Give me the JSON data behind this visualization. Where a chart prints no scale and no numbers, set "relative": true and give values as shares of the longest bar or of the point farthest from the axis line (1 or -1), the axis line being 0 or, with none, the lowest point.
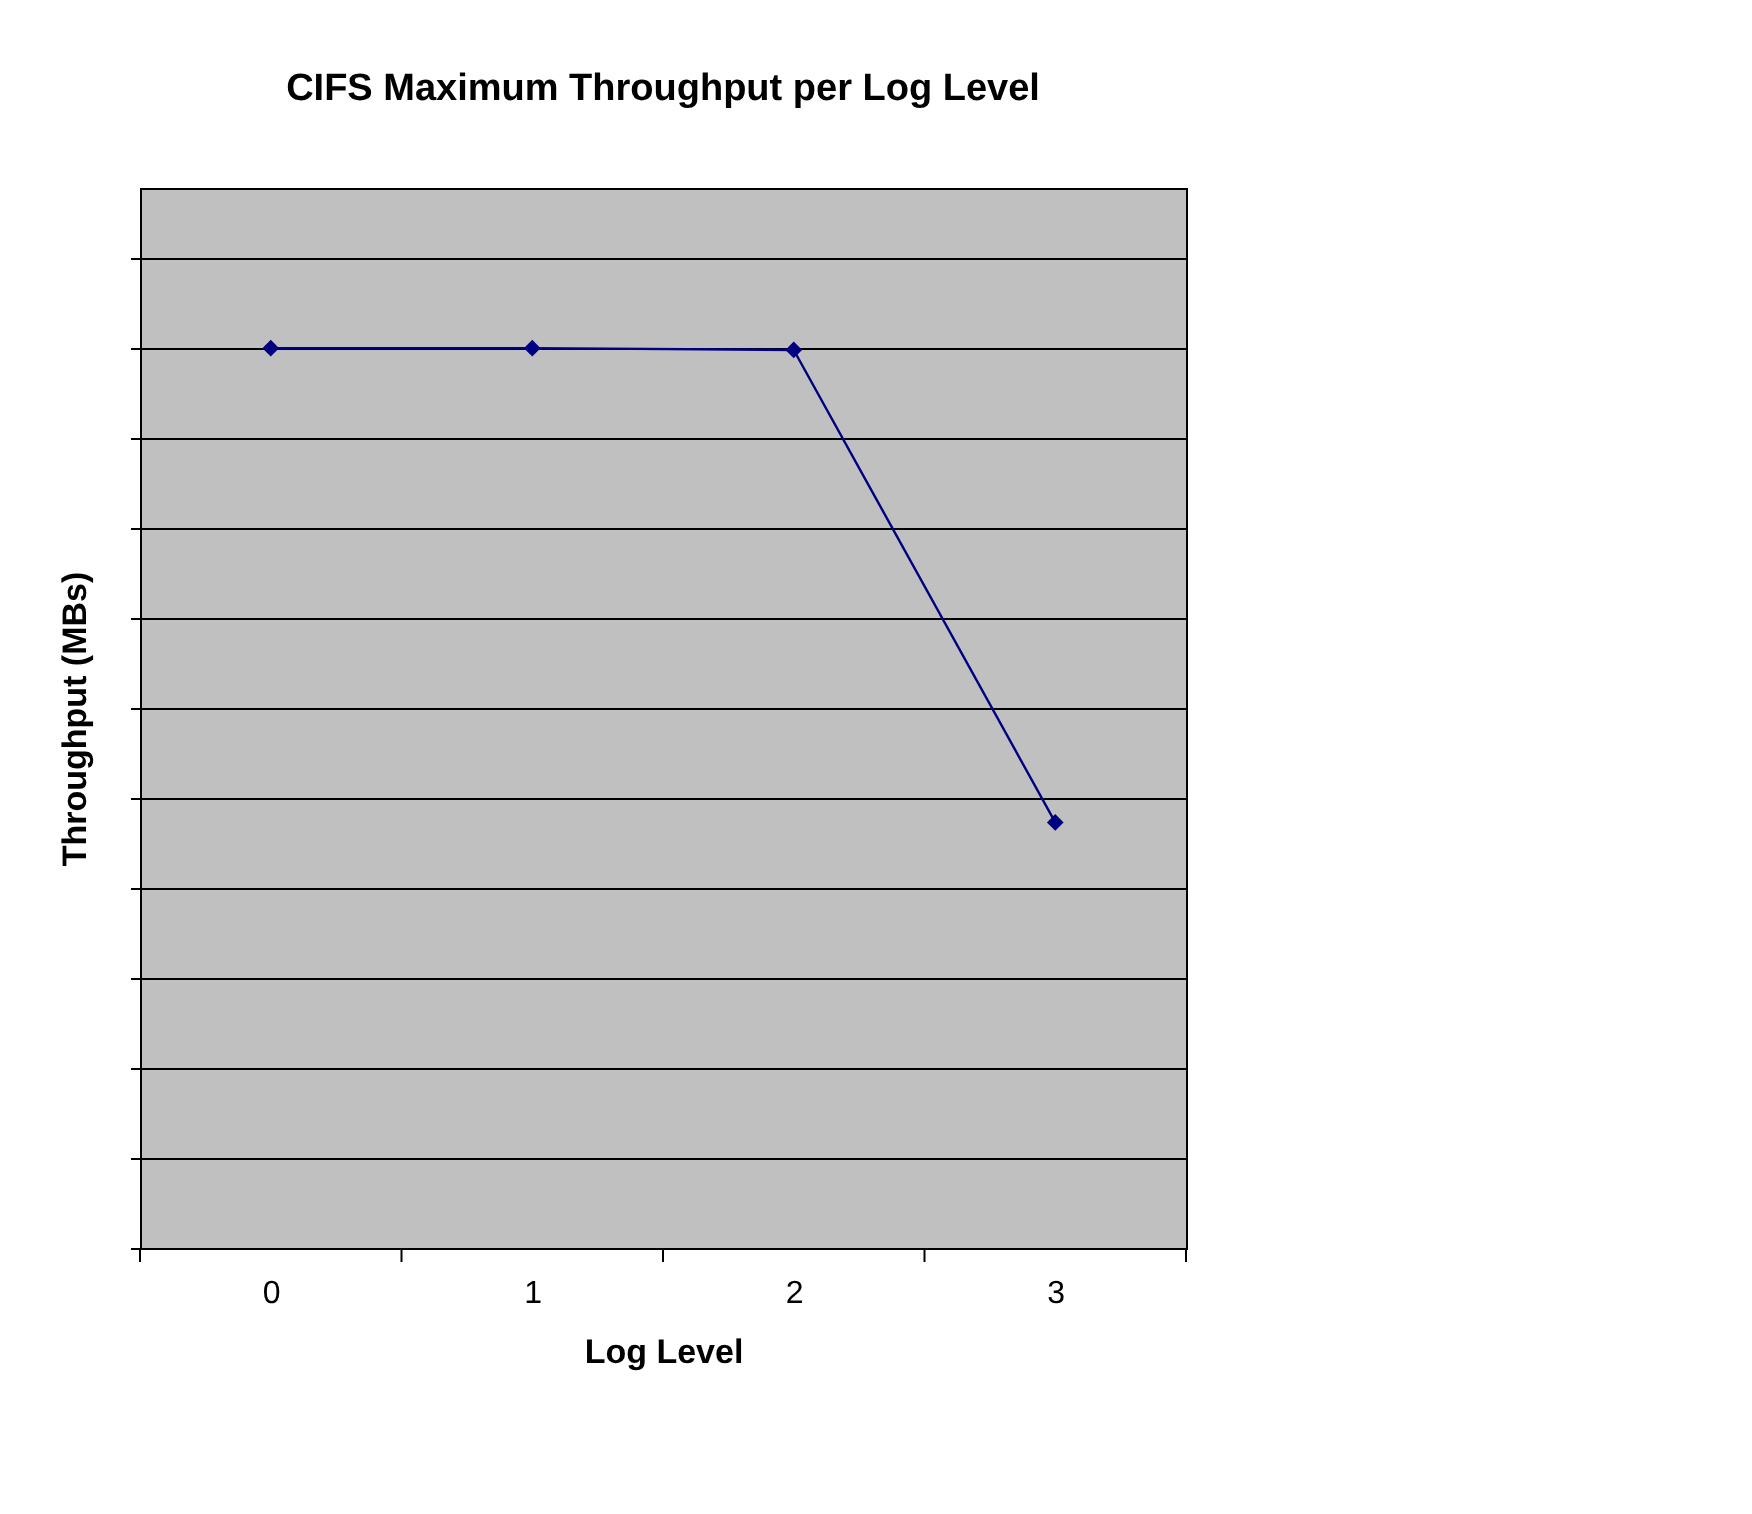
{
  "chart_data": {
    "type": "line",
    "title": "CIFS Maximum Throughput per Log Level",
    "xlabel": "Log Level",
    "ylabel": "Throughput (MBs)",
    "categories": [
      "0",
      "1",
      "2",
      "3"
    ],
    "series": [
      {
        "color": "#000080",
        "values": [
          1,
          1,
          0.998,
          0.473
        ]
      }
    ],
    "relative": true,
    "grid": "y",
    "marker": "diamond",
    "line_style": "solid"
  }
}
